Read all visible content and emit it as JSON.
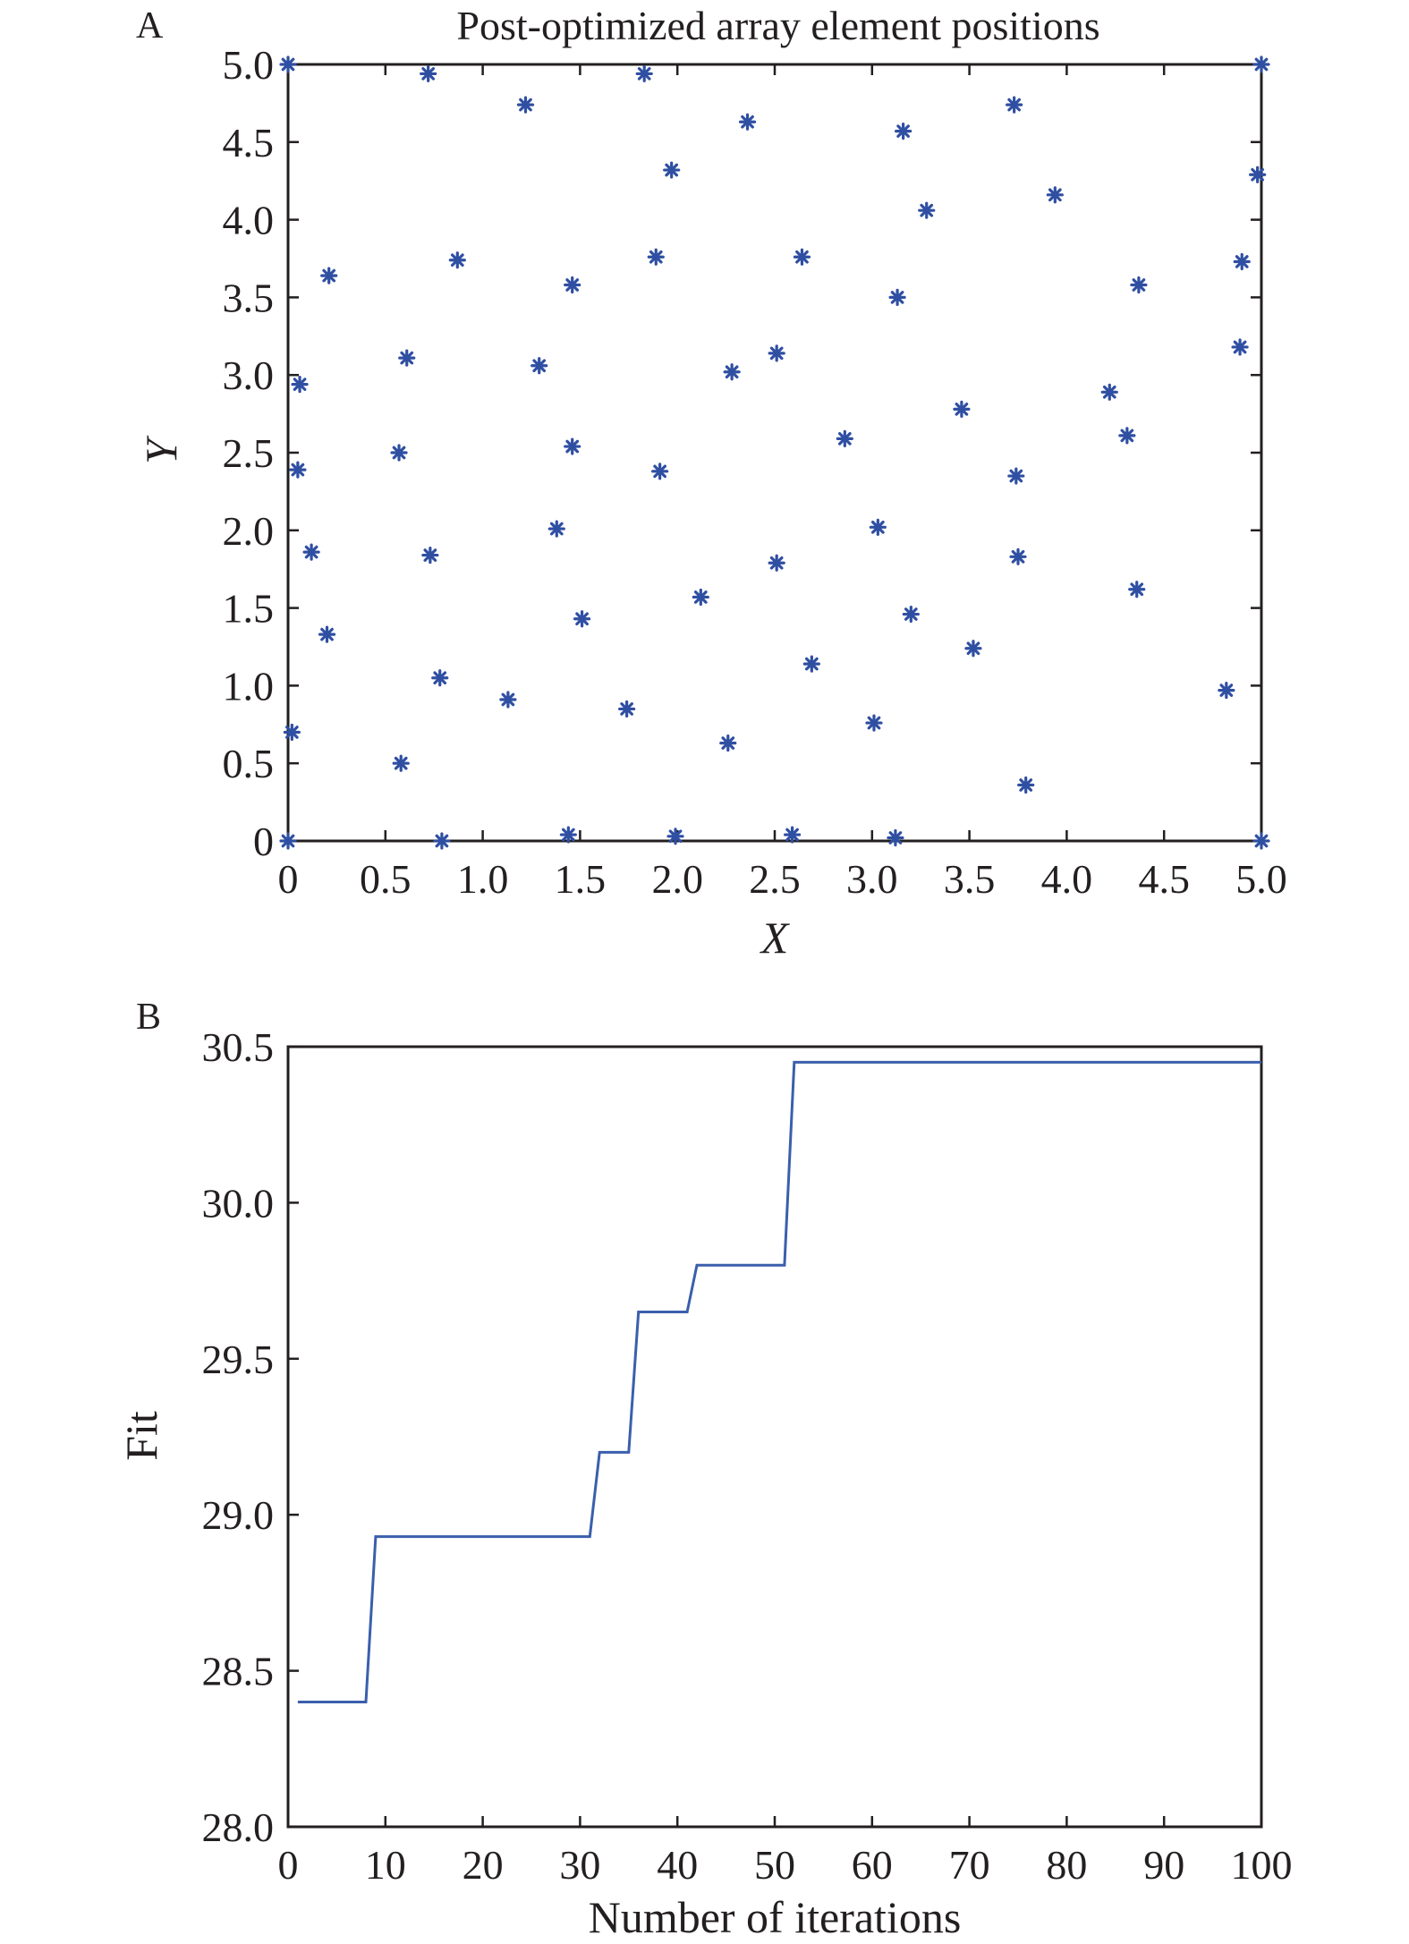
{
  "chart_data": [
    {
      "type": "scatter",
      "panel_label": "A",
      "title": "Post-optimized array element positions",
      "xlabel": "X",
      "ylabel": "Y",
      "xlim": [
        0,
        5
      ],
      "ylim": [
        0,
        5
      ],
      "xticks": [
        "0",
        "0.5",
        "1.0",
        "1.5",
        "2.0",
        "2.5",
        "3.0",
        "3.5",
        "4.0",
        "4.5",
        "5.0"
      ],
      "yticks": [
        "0",
        "0.5",
        "1.0",
        "1.5",
        "2.0",
        "2.5",
        "3.0",
        "3.5",
        "4.0",
        "4.5",
        "5.0"
      ],
      "grid": false,
      "marker": "asterisk",
      "color": "#2f4fa2",
      "points": [
        [
          0.0,
          5.0
        ],
        [
          0.72,
          4.94
        ],
        [
          1.22,
          4.74
        ],
        [
          1.83,
          4.94
        ],
        [
          2.36,
          4.63
        ],
        [
          3.16,
          4.57
        ],
        [
          3.73,
          4.74
        ],
        [
          5.0,
          5.0
        ],
        [
          1.97,
          4.32
        ],
        [
          3.28,
          4.06
        ],
        [
          3.94,
          4.16
        ],
        [
          4.98,
          4.29
        ],
        [
          0.21,
          3.64
        ],
        [
          0.87,
          3.74
        ],
        [
          1.46,
          3.58
        ],
        [
          1.89,
          3.76
        ],
        [
          2.64,
          3.76
        ],
        [
          3.13,
          3.5
        ],
        [
          4.37,
          3.58
        ],
        [
          4.9,
          3.73
        ],
        [
          0.06,
          2.94
        ],
        [
          0.61,
          3.11
        ],
        [
          1.29,
          3.06
        ],
        [
          2.28,
          3.02
        ],
        [
          2.51,
          3.14
        ],
        [
          4.89,
          3.18
        ],
        [
          3.46,
          2.78
        ],
        [
          4.22,
          2.89
        ],
        [
          0.05,
          2.39
        ],
        [
          0.57,
          2.5
        ],
        [
          1.46,
          2.54
        ],
        [
          1.91,
          2.38
        ],
        [
          2.86,
          2.59
        ],
        [
          3.74,
          2.35
        ],
        [
          4.31,
          2.61
        ],
        [
          0.12,
          1.86
        ],
        [
          0.73,
          1.84
        ],
        [
          1.38,
          2.01
        ],
        [
          2.51,
          1.79
        ],
        [
          3.03,
          2.02
        ],
        [
          3.75,
          1.83
        ],
        [
          0.2,
          1.33
        ],
        [
          1.51,
          1.43
        ],
        [
          2.12,
          1.57
        ],
        [
          3.2,
          1.46
        ],
        [
          4.36,
          1.62
        ],
        [
          0.78,
          1.05
        ],
        [
          1.13,
          0.91
        ],
        [
          1.74,
          0.85
        ],
        [
          2.69,
          1.14
        ],
        [
          3.52,
          1.24
        ],
        [
          4.82,
          0.97
        ],
        [
          0.02,
          0.7
        ],
        [
          0.58,
          0.5
        ],
        [
          2.26,
          0.63
        ],
        [
          3.01,
          0.76
        ],
        [
          3.79,
          0.36
        ],
        [
          0.0,
          0.0
        ],
        [
          0.79,
          0.0
        ],
        [
          1.44,
          0.04
        ],
        [
          1.99,
          0.03
        ],
        [
          2.59,
          0.04
        ],
        [
          3.12,
          0.02
        ],
        [
          5.0,
          0.0
        ]
      ]
    },
    {
      "type": "line",
      "panel_label": "B",
      "title": "",
      "xlabel": "Number of iterations",
      "ylabel": "Fit",
      "xlim": [
        0,
        100
      ],
      "ylim": [
        28.0,
        30.5
      ],
      "xticks": [
        "0",
        "10",
        "20",
        "30",
        "40",
        "50",
        "60",
        "70",
        "80",
        "90",
        "100"
      ],
      "yticks": [
        "28.0",
        "28.5",
        "29.0",
        "29.5",
        "30.0",
        "30.5"
      ],
      "grid": false,
      "color": "#3a5fac",
      "x": [
        1,
        8,
        9,
        31,
        32,
        35,
        36,
        41,
        42,
        51,
        52,
        100
      ],
      "y": [
        28.4,
        28.4,
        28.93,
        28.93,
        29.2,
        29.2,
        29.65,
        29.65,
        29.8,
        29.8,
        30.45,
        30.45
      ]
    }
  ]
}
